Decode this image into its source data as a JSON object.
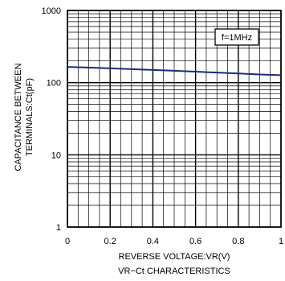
{
  "chart_data": {
    "type": "line",
    "title": "VR−Ct CHARACTERISTICS",
    "xlabel": "REVERSE VOLTAGE:VR(V)",
    "ylabel_line1": "CAPACITANCE BETWEEN",
    "ylabel_line2": "TERMINALS:Ct(pF)",
    "annotation": "f=1MHz",
    "x_scale": "linear",
    "y_scale": "log",
    "xlim": [
      0,
      1
    ],
    "ylim": [
      1,
      1000
    ],
    "x_ticks": [
      0,
      0.2,
      0.4,
      0.6,
      0.8,
      1
    ],
    "x_tick_labels": [
      "0",
      "0.2",
      "0.4",
      "0.6",
      "0.8",
      "1"
    ],
    "y_ticks": [
      1,
      10,
      100,
      1000
    ],
    "y_tick_labels": [
      "1",
      "10",
      "100",
      "1000"
    ],
    "grid": true,
    "line_color": "#1c2b78",
    "series": [
      {
        "x": [
          0,
          0.1,
          0.2,
          0.3,
          0.4,
          0.5,
          0.6,
          0.7,
          0.8,
          0.9,
          1.0
        ],
        "y": [
          165,
          162,
          158,
          154,
          150,
          146,
          142,
          138,
          134,
          130,
          127
        ]
      }
    ]
  }
}
